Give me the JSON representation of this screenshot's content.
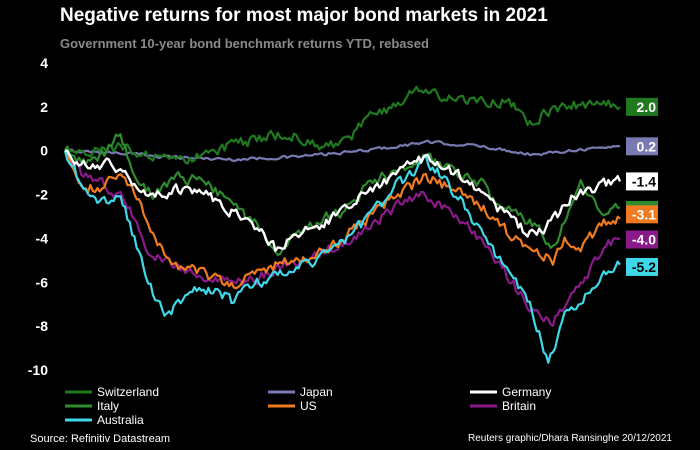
{
  "header": {
    "title": "Negative returns for most major bond markets in 2021",
    "subtitle": "Government 10-year bond benchmark returns YTD, rebased"
  },
  "footer": {
    "source": "Source: Refinitiv Datastream",
    "credit": "Reuters graphic/Dhara Ransinghe 20/12/2021"
  },
  "chart_data": {
    "type": "line",
    "title": "Negative returns for most major bond markets in 2021",
    "subtitle": "Government 10-year bond benchmark returns YTD, rebased",
    "xlabel": "",
    "ylabel": "",
    "x_range": [
      0,
      1
    ],
    "ylim": [
      -10,
      4
    ],
    "y_ticks": [
      4,
      2,
      0,
      -2,
      -4,
      -6,
      -8,
      -10
    ],
    "grid": false,
    "legend_position": "bottom",
    "series": [
      {
        "name": "Switzerland",
        "color": "#1f7a1f",
        "end_label": "2.0",
        "points": [
          [
            0,
            0
          ],
          [
            0.05,
            0
          ],
          [
            0.1,
            0.2
          ],
          [
            0.15,
            -0.3
          ],
          [
            0.2,
            -0.5
          ],
          [
            0.25,
            -0.2
          ],
          [
            0.3,
            0.3
          ],
          [
            0.35,
            0.5
          ],
          [
            0.4,
            0.8
          ],
          [
            0.45,
            0.2
          ],
          [
            0.5,
            0.3
          ],
          [
            0.55,
            1.5
          ],
          [
            0.6,
            2.2
          ],
          [
            0.63,
            2.8
          ],
          [
            0.67,
            2.6
          ],
          [
            0.7,
            2.3
          ],
          [
            0.75,
            2.2
          ],
          [
            0.8,
            2.3
          ],
          [
            0.83,
            1.3
          ],
          [
            0.86,
            1.6
          ],
          [
            0.9,
            2.0
          ],
          [
            0.95,
            2.2
          ],
          [
            1.0,
            2.0
          ]
        ]
      },
      {
        "name": "Italy",
        "color": "#2e8b2e",
        "end_label": "-2.6",
        "points": [
          [
            0,
            0
          ],
          [
            0.03,
            -0.5
          ],
          [
            0.07,
            -0.2
          ],
          [
            0.1,
            0.8
          ],
          [
            0.13,
            -1.5
          ],
          [
            0.16,
            -2.0
          ],
          [
            0.2,
            -1.2
          ],
          [
            0.25,
            -1.4
          ],
          [
            0.3,
            -2.5
          ],
          [
            0.35,
            -3.5
          ],
          [
            0.38,
            -4.6
          ],
          [
            0.42,
            -3.8
          ],
          [
            0.47,
            -3.0
          ],
          [
            0.5,
            -2.8
          ],
          [
            0.55,
            -1.5
          ],
          [
            0.6,
            -0.8
          ],
          [
            0.65,
            -0.3
          ],
          [
            0.7,
            -1.0
          ],
          [
            0.75,
            -1.5
          ],
          [
            0.78,
            -2.5
          ],
          [
            0.82,
            -3.0
          ],
          [
            0.85,
            -3.5
          ],
          [
            0.88,
            -4.5
          ],
          [
            0.9,
            -3.2
          ],
          [
            0.93,
            -1.2
          ],
          [
            0.96,
            -2.8
          ],
          [
            1.0,
            -2.6
          ]
        ]
      },
      {
        "name": "Japan",
        "color": "#7a7ab3",
        "end_label": "0.2",
        "points": [
          [
            0,
            0
          ],
          [
            0.1,
            -0.1
          ],
          [
            0.2,
            -0.3
          ],
          [
            0.3,
            -0.4
          ],
          [
            0.4,
            -0.3
          ],
          [
            0.5,
            -0.1
          ],
          [
            0.6,
            0.2
          ],
          [
            0.65,
            0.4
          ],
          [
            0.7,
            0.3
          ],
          [
            0.75,
            0.2
          ],
          [
            0.8,
            0.0
          ],
          [
            0.85,
            -0.2
          ],
          [
            0.9,
            0.0
          ],
          [
            0.95,
            0.1
          ],
          [
            1.0,
            0.2
          ]
        ]
      },
      {
        "name": "US",
        "color": "#f07a20",
        "end_label": "-3.1",
        "points": [
          [
            0,
            0
          ],
          [
            0.03,
            -1.5
          ],
          [
            0.06,
            -1.8
          ],
          [
            0.1,
            -1.0
          ],
          [
            0.13,
            -2.2
          ],
          [
            0.16,
            -4.0
          ],
          [
            0.2,
            -5.2
          ],
          [
            0.25,
            -5.6
          ],
          [
            0.3,
            -6.2
          ],
          [
            0.35,
            -5.5
          ],
          [
            0.4,
            -5.0
          ],
          [
            0.45,
            -4.8
          ],
          [
            0.5,
            -4.0
          ],
          [
            0.55,
            -3.0
          ],
          [
            0.6,
            -2.0
          ],
          [
            0.65,
            -1.2
          ],
          [
            0.7,
            -1.8
          ],
          [
            0.75,
            -2.5
          ],
          [
            0.8,
            -3.8
          ],
          [
            0.84,
            -4.6
          ],
          [
            0.88,
            -5.0
          ],
          [
            0.9,
            -4.0
          ],
          [
            0.93,
            -4.4
          ],
          [
            0.97,
            -3.3
          ],
          [
            1.0,
            -3.1
          ]
        ]
      },
      {
        "name": "Germany",
        "color": "#ffffff",
        "end_label": "-1.4",
        "points": [
          [
            0,
            0
          ],
          [
            0.04,
            -0.8
          ],
          [
            0.08,
            -0.6
          ],
          [
            0.12,
            -1.4
          ],
          [
            0.16,
            -2.0
          ],
          [
            0.2,
            -1.8
          ],
          [
            0.25,
            -1.9
          ],
          [
            0.3,
            -2.8
          ],
          [
            0.35,
            -3.6
          ],
          [
            0.38,
            -4.5
          ],
          [
            0.42,
            -3.8
          ],
          [
            0.47,
            -3.2
          ],
          [
            0.5,
            -2.8
          ],
          [
            0.55,
            -1.8
          ],
          [
            0.6,
            -1.0
          ],
          [
            0.65,
            -0.3
          ],
          [
            0.7,
            -1.0
          ],
          [
            0.75,
            -1.8
          ],
          [
            0.78,
            -2.6
          ],
          [
            0.82,
            -3.5
          ],
          [
            0.85,
            -3.9
          ],
          [
            0.88,
            -3.2
          ],
          [
            0.92,
            -2.0
          ],
          [
            0.96,
            -1.6
          ],
          [
            1.0,
            -1.4
          ]
        ]
      },
      {
        "name": "Britain",
        "color": "#8a1a8a",
        "end_label": "-4.0",
        "points": [
          [
            0,
            0
          ],
          [
            0.03,
            -1.0
          ],
          [
            0.07,
            -1.5
          ],
          [
            0.11,
            -2.3
          ],
          [
            0.15,
            -4.5
          ],
          [
            0.2,
            -5.3
          ],
          [
            0.25,
            -5.8
          ],
          [
            0.3,
            -6.0
          ],
          [
            0.35,
            -5.8
          ],
          [
            0.4,
            -5.2
          ],
          [
            0.45,
            -4.8
          ],
          [
            0.5,
            -4.2
          ],
          [
            0.55,
            -3.5
          ],
          [
            0.6,
            -2.5
          ],
          [
            0.65,
            -2.0
          ],
          [
            0.7,
            -3.0
          ],
          [
            0.75,
            -4.0
          ],
          [
            0.8,
            -5.8
          ],
          [
            0.84,
            -7.2
          ],
          [
            0.88,
            -7.8
          ],
          [
            0.91,
            -6.5
          ],
          [
            0.94,
            -5.8
          ],
          [
            0.97,
            -4.3
          ],
          [
            1.0,
            -4.0
          ]
        ]
      },
      {
        "name": "Australia",
        "color": "#3fd8e8",
        "end_label": "-5.2",
        "points": [
          [
            0,
            0
          ],
          [
            0.03,
            -1.5
          ],
          [
            0.06,
            -2.5
          ],
          [
            0.1,
            -2.0
          ],
          [
            0.13,
            -4.5
          ],
          [
            0.16,
            -6.5
          ],
          [
            0.18,
            -7.6
          ],
          [
            0.22,
            -6.5
          ],
          [
            0.27,
            -6.3
          ],
          [
            0.3,
            -6.8
          ],
          [
            0.35,
            -6.0
          ],
          [
            0.4,
            -5.5
          ],
          [
            0.45,
            -5.0
          ],
          [
            0.5,
            -4.2
          ],
          [
            0.55,
            -3.0
          ],
          [
            0.6,
            -1.5
          ],
          [
            0.65,
            -0.5
          ],
          [
            0.68,
            -1.2
          ],
          [
            0.72,
            -2.5
          ],
          [
            0.76,
            -4.2
          ],
          [
            0.8,
            -5.5
          ],
          [
            0.84,
            -7.0
          ],
          [
            0.87,
            -9.8
          ],
          [
            0.9,
            -7.5
          ],
          [
            0.93,
            -6.8
          ],
          [
            0.96,
            -5.8
          ],
          [
            1.0,
            -5.2
          ]
        ]
      }
    ]
  }
}
